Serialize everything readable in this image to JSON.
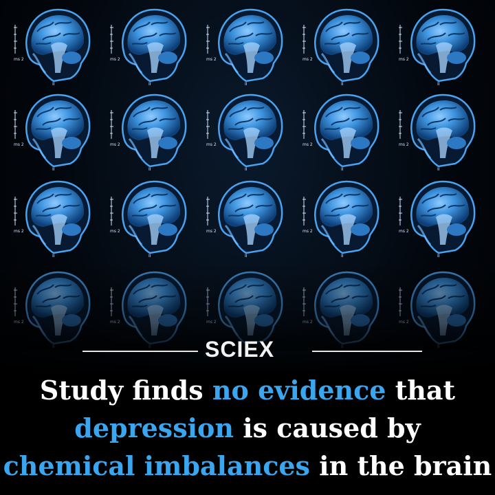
{
  "brand": {
    "name": "SCIEX"
  },
  "scan_labels": {
    "mark": "II",
    "scale": "ms 2"
  },
  "headline": {
    "line1": {
      "a": "Study finds ",
      "b": "no evidence",
      "c": " that"
    },
    "line2": {
      "a": "depression",
      "b": " is caused by"
    },
    "line3": {
      "a": "chemical imbalances",
      "b": " in the brain"
    }
  },
  "colors": {
    "accent": "#3aa6ef",
    "text": "#ffffff",
    "background": "#000000",
    "scan_tint": "#2f86d8"
  },
  "icons": [
    "brain-mri-scan",
    "compass-rose-icon"
  ]
}
